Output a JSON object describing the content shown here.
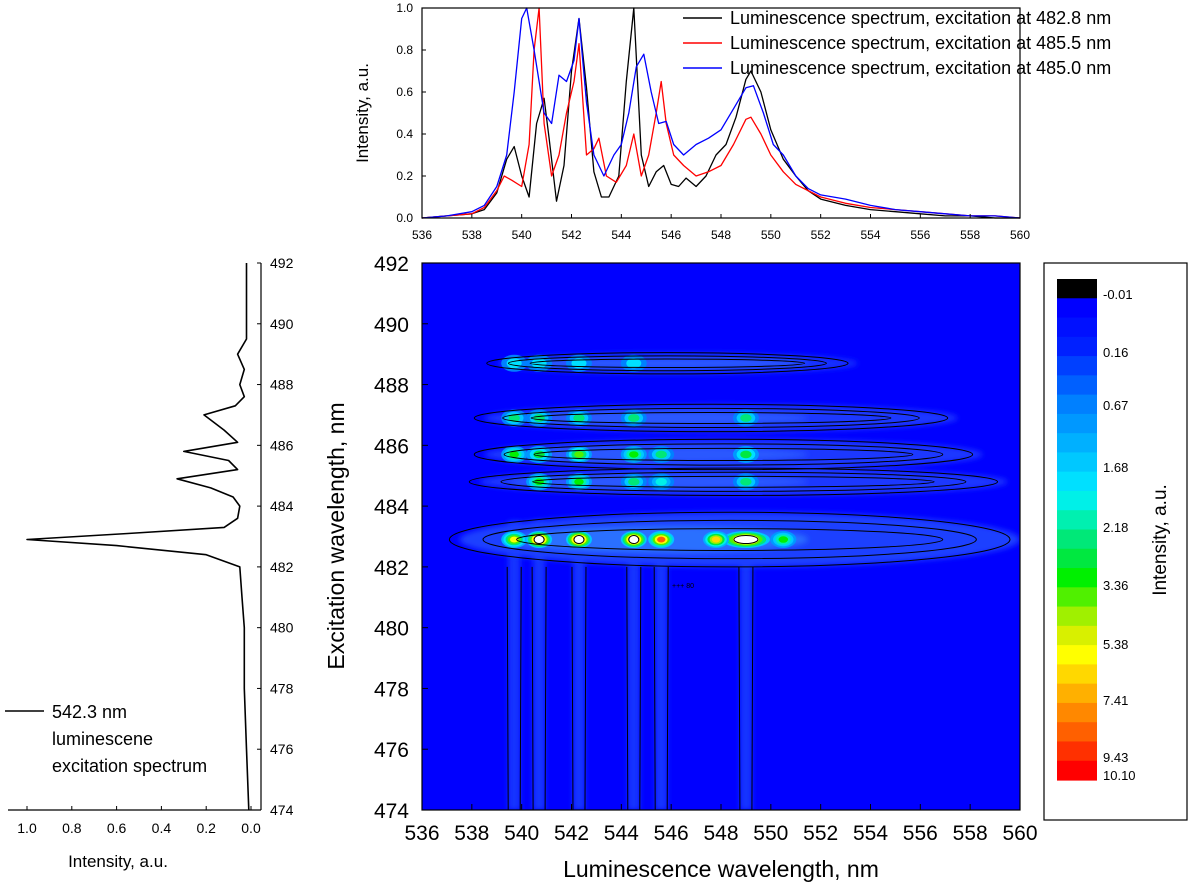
{
  "chart_data": [
    {
      "type": "line",
      "panel": "top",
      "xlim": [
        536,
        560
      ],
      "ylim": [
        0,
        1.0
      ],
      "ylabel": "Intensity, a.u.",
      "xticks": [
        "536",
        "538",
        "540",
        "542",
        "544",
        "546",
        "548",
        "550",
        "552",
        "554",
        "556",
        "558",
        "560"
      ],
      "yticks": [
        "0.0",
        "0.2",
        "0.4",
        "0.6",
        "0.8",
        "1.0"
      ],
      "legend_placement": "top-right",
      "series": [
        {
          "name": "Luminescence spectrum, excitation at 482.8 nm",
          "color": "#000000",
          "x": [
            536,
            537,
            538,
            538.5,
            539,
            539.4,
            539.7,
            540.0,
            540.3,
            540.6,
            540.9,
            541.1,
            541.4,
            541.7,
            542.0,
            542.3,
            542.6,
            542.9,
            543.2,
            543.5,
            543.9,
            544.2,
            544.5,
            544.8,
            545.1,
            545.4,
            545.7,
            546.0,
            546.3,
            546.6,
            547.0,
            547.4,
            547.8,
            548.2,
            548.6,
            549.0,
            549.2,
            549.6,
            550.0,
            550.5,
            551.0,
            551.5,
            552.0,
            553.0,
            554.0,
            555.0,
            556.0,
            557.0,
            558.0,
            559.0,
            560.0
          ],
          "y": [
            0.0,
            0.01,
            0.02,
            0.04,
            0.12,
            0.28,
            0.34,
            0.2,
            0.1,
            0.45,
            0.57,
            0.38,
            0.08,
            0.25,
            0.7,
            0.95,
            0.62,
            0.22,
            0.1,
            0.1,
            0.2,
            0.65,
            1.0,
            0.3,
            0.15,
            0.22,
            0.25,
            0.16,
            0.15,
            0.19,
            0.15,
            0.2,
            0.3,
            0.35,
            0.48,
            0.66,
            0.7,
            0.6,
            0.42,
            0.28,
            0.2,
            0.13,
            0.09,
            0.06,
            0.04,
            0.03,
            0.02,
            0.01,
            0.01,
            0.0,
            0.0
          ]
        },
        {
          "name": "Luminescence spectrum, excitation at 485.5 nm",
          "color": "#ff0000",
          "x": [
            536,
            537,
            538,
            538.5,
            539,
            539.3,
            539.6,
            540.0,
            540.3,
            540.5,
            540.7,
            540.9,
            541.2,
            541.5,
            541.8,
            542.1,
            542.3,
            542.6,
            542.9,
            543.1,
            543.4,
            543.8,
            544.2,
            544.5,
            544.8,
            545.1,
            545.4,
            545.6,
            545.8,
            546.1,
            546.5,
            547.0,
            547.5,
            548.0,
            548.5,
            549.0,
            549.2,
            549.6,
            550.0,
            550.5,
            551.0,
            552.0,
            553.0,
            554.0,
            555.0,
            556.0,
            557.0,
            558.0,
            559.0,
            560.0
          ],
          "y": [
            0.0,
            0.01,
            0.02,
            0.05,
            0.13,
            0.2,
            0.18,
            0.15,
            0.35,
            0.8,
            1.0,
            0.45,
            0.2,
            0.3,
            0.5,
            0.65,
            0.83,
            0.3,
            0.33,
            0.38,
            0.2,
            0.17,
            0.25,
            0.4,
            0.2,
            0.3,
            0.5,
            0.65,
            0.45,
            0.3,
            0.25,
            0.2,
            0.22,
            0.25,
            0.35,
            0.47,
            0.48,
            0.4,
            0.3,
            0.22,
            0.16,
            0.1,
            0.07,
            0.05,
            0.04,
            0.03,
            0.02,
            0.01,
            0.01,
            0.0
          ]
        },
        {
          "name": "Luminescence spectrum, excitation at 485.0 nm",
          "color": "#0000ff",
          "x": [
            536,
            537,
            538,
            538.5,
            539,
            539.4,
            539.7,
            540.0,
            540.2,
            540.5,
            540.9,
            541.2,
            541.5,
            541.8,
            542.1,
            542.3,
            542.6,
            542.9,
            543.3,
            543.7,
            544.0,
            544.3,
            544.6,
            544.9,
            545.2,
            545.5,
            545.8,
            546.1,
            546.5,
            547.0,
            547.5,
            548.0,
            548.5,
            549.0,
            549.3,
            549.7,
            550.1,
            550.5,
            551.0,
            551.5,
            552.0,
            553.0,
            554.0,
            555.0,
            556.0,
            557.0,
            558.0,
            559.0,
            560.0
          ],
          "y": [
            0.0,
            0.01,
            0.03,
            0.06,
            0.15,
            0.3,
            0.6,
            0.95,
            1.0,
            0.8,
            0.5,
            0.45,
            0.68,
            0.65,
            0.75,
            0.95,
            0.55,
            0.3,
            0.2,
            0.3,
            0.35,
            0.5,
            0.72,
            0.78,
            0.6,
            0.45,
            0.46,
            0.35,
            0.3,
            0.35,
            0.38,
            0.42,
            0.52,
            0.62,
            0.63,
            0.5,
            0.35,
            0.3,
            0.2,
            0.14,
            0.11,
            0.09,
            0.06,
            0.04,
            0.03,
            0.02,
            0.01,
            0.01,
            0.0
          ]
        }
      ]
    },
    {
      "type": "line",
      "panel": "left",
      "orientation": "rotated",
      "title": "542.3 nm\nluminescene\nexcitation spectrum",
      "xlabel": "Intensity, a.u.",
      "xlim": [
        1.0,
        0.0
      ],
      "ylim": [
        474,
        492
      ],
      "xticks": [
        "1.0",
        "0.8",
        "0.6",
        "0.4",
        "0.2",
        "0.0"
      ],
      "yticks": [
        "492",
        "490",
        "488",
        "486",
        "484",
        "482",
        "480",
        "478",
        "476",
        "474"
      ],
      "legend_placement": "bottom-left",
      "series": [
        {
          "name": "542.3 nm",
          "color": "#000000",
          "x": [
            474,
            476,
            478,
            480,
            481,
            482,
            482.4,
            482.7,
            482.9,
            483.1,
            483.3,
            483.6,
            484.0,
            484.3,
            484.6,
            484.9,
            485.2,
            485.5,
            485.8,
            486.1,
            486.5,
            487.0,
            487.3,
            487.6,
            488.0,
            488.5,
            489.0,
            489.5,
            490.0,
            491.0,
            492.0
          ],
          "y": [
            0.01,
            0.02,
            0.03,
            0.03,
            0.04,
            0.05,
            0.2,
            0.6,
            1.0,
            0.55,
            0.12,
            0.06,
            0.05,
            0.08,
            0.18,
            0.33,
            0.06,
            0.1,
            0.3,
            0.06,
            0.12,
            0.21,
            0.07,
            0.03,
            0.05,
            0.03,
            0.06,
            0.02,
            0.02,
            0.02,
            0.02
          ]
        }
      ]
    },
    {
      "type": "heatmap",
      "panel": "main",
      "xlabel": "Luminescence wavelength, nm",
      "ylabel": "Excitation wavelength, nm",
      "xlim": [
        536,
        560
      ],
      "ylim": [
        474,
        492
      ],
      "xticks": [
        "536",
        "538",
        "540",
        "542",
        "544",
        "546",
        "548",
        "550",
        "552",
        "554",
        "556",
        "558",
        "560"
      ],
      "yticks": [
        "492",
        "490",
        "488",
        "486",
        "484",
        "482",
        "480",
        "478",
        "476",
        "474"
      ],
      "contour_label": "+++ 80",
      "colorbar": {
        "label": "Intensity, a.u.",
        "tick_labels": [
          "-0.01",
          "0.16",
          "0.67",
          "1.68",
          "2.18",
          "3.36",
          "5.38",
          "7.41",
          "9.43",
          "10.10"
        ],
        "colors": [
          "#000000",
          "#0000ff",
          "#0010ff",
          "#0020ff",
          "#0040ff",
          "#0060ff",
          "#0080ff",
          "#0098ff",
          "#00b0ff",
          "#00c8ff",
          "#00e0ff",
          "#00f0e8",
          "#00f0b0",
          "#00e878",
          "#00e840",
          "#00f000",
          "#50f000",
          "#a0f000",
          "#d8f000",
          "#ffff00",
          "#ffd800",
          "#ffb000",
          "#ff8800",
          "#ff6000",
          "#ff3000",
          "#ff0000"
        ]
      },
      "emission_peaks_nm": [
        539.7,
        540.7,
        542.3,
        544.5,
        545.6,
        549.0
      ],
      "excitation_bands_nm": [
        482.9,
        484.8,
        485.7,
        486.9,
        488.7
      ],
      "peak_intensity": 10.1
    }
  ]
}
